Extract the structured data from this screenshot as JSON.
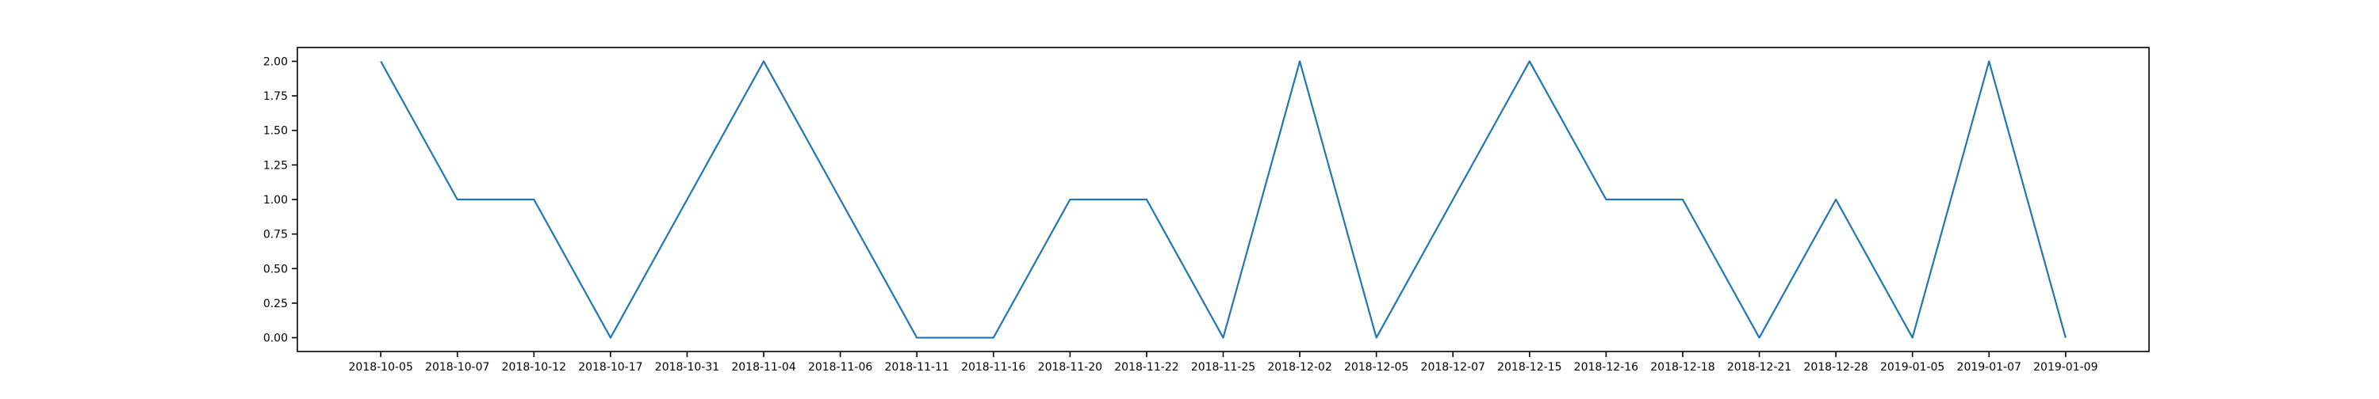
{
  "chart_data": {
    "type": "line",
    "title": "",
    "xlabel": "",
    "ylabel": "",
    "categories": [
      "2018-10-05",
      "2018-10-07",
      "2018-10-12",
      "2018-10-17",
      "2018-10-31",
      "2018-11-04",
      "2018-11-06",
      "2018-11-11",
      "2018-11-16",
      "2018-11-20",
      "2018-11-22",
      "2018-11-25",
      "2018-12-02",
      "2018-12-05",
      "2018-12-07",
      "2018-12-15",
      "2018-12-16",
      "2018-12-18",
      "2018-12-21",
      "2018-12-28",
      "2019-01-05",
      "2019-01-07",
      "2019-01-09"
    ],
    "series": [
      {
        "values": [
          2,
          1,
          1,
          0,
          1,
          2,
          1,
          0,
          0,
          1,
          1,
          0,
          2,
          0,
          1,
          2,
          1,
          1,
          0,
          1,
          0,
          2,
          0
        ],
        "color": "#1f77b4"
      }
    ],
    "yticks": [
      "0.00",
      "0.25",
      "0.50",
      "0.75",
      "1.00",
      "1.25",
      "1.50",
      "1.75",
      "2.00"
    ],
    "ylim": [
      -0.1,
      2.1
    ],
    "grid": false,
    "legend": "none"
  }
}
